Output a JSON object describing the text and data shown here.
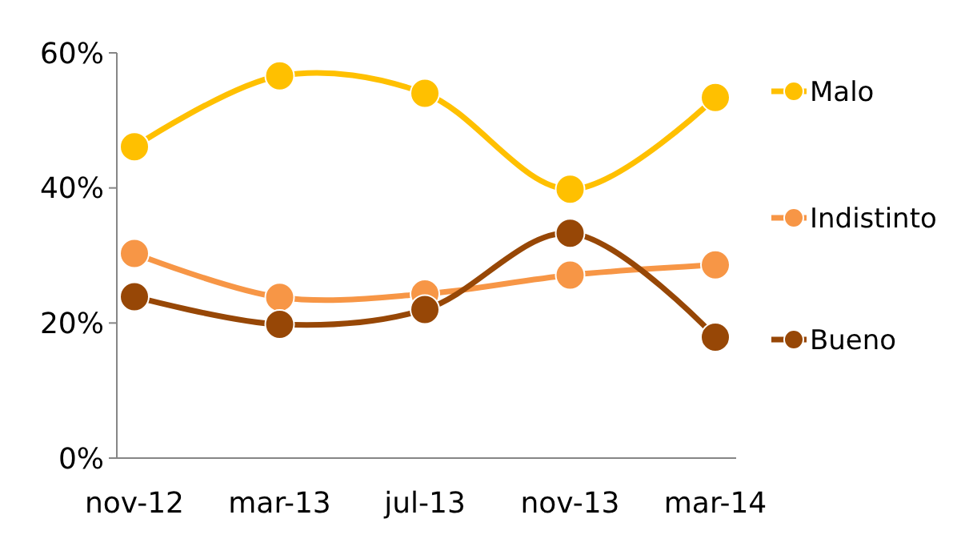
{
  "chart_data": {
    "type": "line",
    "categories": [
      "nov-12",
      "mar-13",
      "jul-13",
      "nov-13",
      "mar-14"
    ],
    "series": [
      {
        "name": "Malo",
        "color": "#ffc000",
        "values": [
          46.1,
          56.6,
          54.0,
          39.8,
          53.4
        ]
      },
      {
        "name": "Indistinto",
        "color": "#f79646",
        "values": [
          30.3,
          23.8,
          24.3,
          27.1,
          28.6
        ]
      },
      {
        "name": "Bueno",
        "color": "#974706",
        "values": [
          23.9,
          19.8,
          22.0,
          33.3,
          17.9
        ]
      }
    ],
    "ylim": [
      0,
      60
    ],
    "yticks": [
      {
        "value": 0,
        "label": "0%"
      },
      {
        "value": 20,
        "label": "20%"
      },
      {
        "value": 40,
        "label": "40%"
      },
      {
        "value": 60,
        "label": "60%"
      }
    ],
    "grid": false,
    "legend": "right",
    "marker": "circle",
    "line_style": "solid"
  }
}
